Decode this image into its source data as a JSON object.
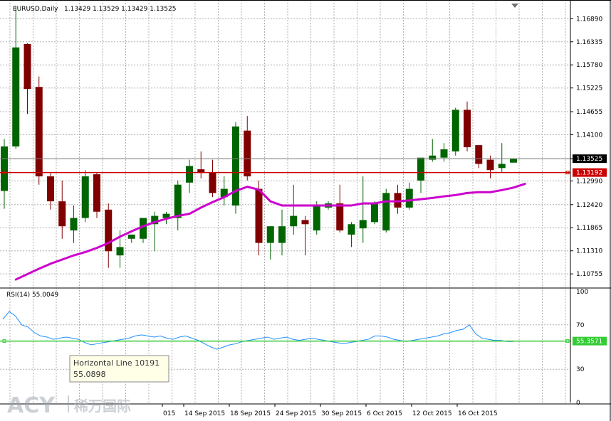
{
  "header": {
    "symbol_line": "EURUSD,Daily",
    "ohlc": "1.13429 1.13529 1.13429 1.13525"
  },
  "rsi_label": "RSI(14) 55.0049",
  "tooltip": {
    "title": "Horizontal Line 10191",
    "value": "55.0898"
  },
  "watermark": {
    "brand": "ACY",
    "text": "稀万国际"
  },
  "colors": {
    "bull": "#006400",
    "bear": "#800000",
    "ma": "#cc00cc",
    "grid": "#b0b0b0",
    "hline_price": "#cc0000",
    "hline_rsi": "#33cc33",
    "rsi_line": "#1e90ff"
  },
  "chart_data": [
    {
      "type": "candlestick",
      "name": "EURUSD,Daily",
      "y_ticks": [
        "1.16890",
        "1.16335",
        "1.15780",
        "1.15225",
        "1.14655",
        "1.14100",
        "1.13525",
        "1.12990",
        "1.12420",
        "1.11865",
        "1.11310",
        "1.10755"
      ],
      "ylim": [
        1.1045,
        1.1734
      ],
      "current_price": "1.13525",
      "horizontal_line": "1.13192",
      "x_ticks": [
        "015",
        "14 Sep 2015",
        "18 Sep 2015",
        "24 Sep 2015",
        "30 Sep 2015",
        "6 Oct 2015",
        "12 Oct 2015",
        "16 Oct 2015"
      ],
      "candles": [
        {
          "o": 1.1275,
          "h": 1.14,
          "l": 1.1232,
          "c": 1.1382
        },
        {
          "o": 1.1382,
          "h": 1.172,
          "l": 1.1376,
          "c": 1.162
        },
        {
          "o": 1.1628,
          "h": 1.163,
          "l": 1.146,
          "c": 1.152
        },
        {
          "o": 1.1525,
          "h": 1.155,
          "l": 1.129,
          "c": 1.131
        },
        {
          "o": 1.131,
          "h": 1.132,
          "l": 1.123,
          "c": 1.125
        },
        {
          "o": 1.125,
          "h": 1.13,
          "l": 1.116,
          "c": 1.119
        },
        {
          "o": 1.118,
          "h": 1.124,
          "l": 1.115,
          "c": 1.121
        },
        {
          "o": 1.121,
          "h": 1.1325,
          "l": 1.12,
          "c": 1.131
        },
        {
          "o": 1.1315,
          "h": 1.132,
          "l": 1.121,
          "c": 1.1225
        },
        {
          "o": 1.123,
          "h": 1.1245,
          "l": 1.109,
          "c": 1.113
        },
        {
          "o": 1.112,
          "h": 1.118,
          "l": 1.109,
          "c": 1.114
        },
        {
          "o": 1.116,
          "h": 1.117,
          "l": 1.115,
          "c": 1.117
        },
        {
          "o": 1.116,
          "h": 1.121,
          "l": 1.115,
          "c": 1.121
        },
        {
          "o": 1.1195,
          "h": 1.1225,
          "l": 1.113,
          "c": 1.1215
        },
        {
          "o": 1.121,
          "h": 1.1225,
          "l": 1.1195,
          "c": 1.122
        },
        {
          "o": 1.121,
          "h": 1.13,
          "l": 1.118,
          "c": 1.129
        },
        {
          "o": 1.1295,
          "h": 1.135,
          "l": 1.127,
          "c": 1.1335
        },
        {
          "o": 1.1327,
          "h": 1.137,
          "l": 1.1305,
          "c": 1.132
        },
        {
          "o": 1.132,
          "h": 1.135,
          "l": 1.126,
          "c": 1.127
        },
        {
          "o": 1.126,
          "h": 1.131,
          "l": 1.124,
          "c": 1.128
        },
        {
          "o": 1.124,
          "h": 1.144,
          "l": 1.122,
          "c": 1.143
        },
        {
          "o": 1.142,
          "h": 1.1455,
          "l": 1.13,
          "c": 1.131
        },
        {
          "o": 1.128,
          "h": 1.13,
          "l": 1.112,
          "c": 1.115
        },
        {
          "o": 1.115,
          "h": 1.119,
          "l": 1.111,
          "c": 1.119
        },
        {
          "o": 1.115,
          "h": 1.123,
          "l": 1.112,
          "c": 1.119
        },
        {
          "o": 1.119,
          "h": 1.129,
          "l": 1.117,
          "c": 1.1215
        },
        {
          "o": 1.1205,
          "h": 1.1215,
          "l": 1.112,
          "c": 1.1195
        },
        {
          "o": 1.118,
          "h": 1.125,
          "l": 1.117,
          "c": 1.124
        },
        {
          "o": 1.1235,
          "h": 1.125,
          "l": 1.123,
          "c": 1.1245
        },
        {
          "o": 1.1245,
          "h": 1.129,
          "l": 1.1175,
          "c": 1.118
        },
        {
          "o": 1.117,
          "h": 1.12,
          "l": 1.114,
          "c": 1.1195
        },
        {
          "o": 1.1185,
          "h": 1.131,
          "l": 1.115,
          "c": 1.1205
        },
        {
          "o": 1.12,
          "h": 1.125,
          "l": 1.1195,
          "c": 1.1245
        },
        {
          "o": 1.118,
          "h": 1.128,
          "l": 1.1175,
          "c": 1.127
        },
        {
          "o": 1.127,
          "h": 1.129,
          "l": 1.122,
          "c": 1.1235
        },
        {
          "o": 1.1235,
          "h": 1.1295,
          "l": 1.123,
          "c": 1.128
        },
        {
          "o": 1.13,
          "h": 1.135,
          "l": 1.127,
          "c": 1.1355
        },
        {
          "o": 1.135,
          "h": 1.14,
          "l": 1.1345,
          "c": 1.136
        },
        {
          "o": 1.1355,
          "h": 1.139,
          "l": 1.1345,
          "c": 1.1375
        },
        {
          "o": 1.137,
          "h": 1.1475,
          "l": 1.136,
          "c": 1.147
        },
        {
          "o": 1.147,
          "h": 1.149,
          "l": 1.137,
          "c": 1.138
        },
        {
          "o": 1.1385,
          "h": 1.1385,
          "l": 1.133,
          "c": 1.134
        },
        {
          "o": 1.135,
          "h": 1.136,
          "l": 1.1305,
          "c": 1.1325
        },
        {
          "o": 1.133,
          "h": 1.139,
          "l": 1.132,
          "c": 1.134
        },
        {
          "o": 1.1343,
          "h": 1.1353,
          "l": 1.1343,
          "c": 1.13525
        }
      ],
      "moving_average": [
        1.1062,
        1.1075,
        1.1088,
        1.11,
        1.111,
        1.112,
        1.1128,
        1.1138,
        1.115,
        1.1165,
        1.1178,
        1.119,
        1.12,
        1.1208,
        1.1215,
        1.122,
        1.1235,
        1.1248,
        1.126,
        1.1275,
        1.1285,
        1.1278,
        1.125,
        1.124,
        1.124,
        1.124,
        1.124,
        1.124,
        1.124,
        1.124,
        1.1245,
        1.1245,
        1.125,
        1.125,
        1.1252,
        1.1255,
        1.1258,
        1.1262,
        1.1265,
        1.127,
        1.1272,
        1.1272,
        1.1277,
        1.1283,
        1.1292
      ]
    },
    {
      "type": "line",
      "name": "RSI(14) 55.0049",
      "y_ticks": [
        "100",
        "70",
        "30",
        "0"
      ],
      "ylim": [
        0,
        100
      ],
      "level_line": "55.3571",
      "values": [
        75,
        82,
        78,
        70,
        68,
        63,
        60,
        59,
        57,
        58,
        59,
        58,
        57,
        54,
        52,
        53,
        54,
        55,
        56,
        57,
        58,
        60,
        61,
        60,
        59,
        60,
        58,
        57,
        59,
        60,
        58,
        56,
        53,
        50,
        48,
        50,
        52,
        53,
        55,
        56,
        57,
        58,
        59,
        57,
        58,
        59,
        57,
        56,
        57,
        58,
        57,
        56,
        55,
        54,
        53,
        54,
        55,
        56,
        57,
        60,
        60,
        59,
        57,
        56,
        55,
        56,
        57,
        58,
        59,
        60,
        62,
        63,
        65,
        66,
        70,
        62,
        58,
        57,
        56,
        56,
        55,
        55
      ]
    }
  ]
}
